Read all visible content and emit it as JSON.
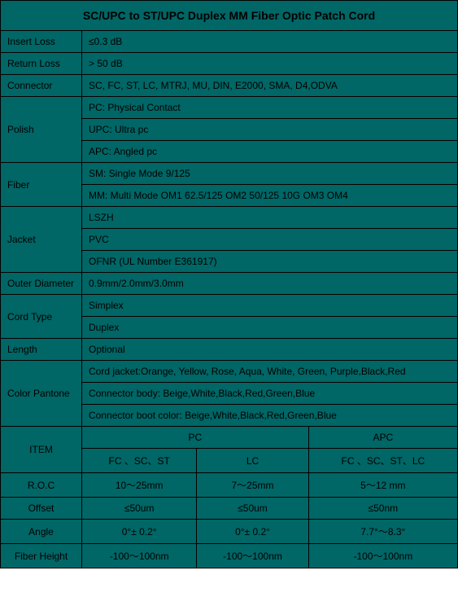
{
  "background_color": "#006666",
  "border_color": "#000000",
  "text_color": "#000000",
  "title": "SC/UPC to ST/UPC Duplex MM Fiber Optic Patch Cord",
  "specs": {
    "insert_loss": {
      "label": "Insert   Loss",
      "value": "≤0.3 dB"
    },
    "return_loss": {
      "label": "Return Loss",
      "value": "> 50 dB"
    },
    "connector": {
      "label": "Connector",
      "value": "SC, FC, ST, LC, MTRJ, MU, DIN, E2000, SMA, D4,ODVA"
    },
    "polish": {
      "label": "Polish",
      "rows": [
        "PC: Physical Contact",
        "UPC: Ultra pc",
        "APC: Angled pc"
      ]
    },
    "fiber": {
      "label": "Fiber",
      "rows": [
        "SM: Single Mode  9/125",
        "MM: Multi Mode  OM1 62.5/125  OM2 50/125  10G OM3 OM4"
      ]
    },
    "jacket": {
      "label": "Jacket",
      "rows": [
        "LSZH",
        "PVC",
        "OFNR (UL Number E361917)"
      ]
    },
    "outer_diameter": {
      "label": "Outer Diameter",
      "value": "0.9mm/2.0mm/3.0mm"
    },
    "cord_type": {
      "label": "Cord Type",
      "rows": [
        "Simplex",
        "Duplex"
      ]
    },
    "length": {
      "label": "Length",
      "value": "Optional"
    },
    "color_pantone": {
      "label": "Color Pantone",
      "rows": [
        "Cord jacket:Orange, Yellow, Rose, Aqua, White, Green, Purple,Black,Red",
        "Connector body: Beige,White,Black,Red,Green,Blue",
        "Connector boot color: Beige,White,Black,Red,Green,Blue"
      ]
    }
  },
  "bottom_table": {
    "item_label": "ITEM",
    "pc_label": "PC",
    "apc_label": "APC",
    "pc_sub1": "FC 、SC、ST",
    "pc_sub2": "LC",
    "apc_sub": "FC 、SC、ST、LC",
    "rows": [
      {
        "label": "R.O.C",
        "c1": "10～25mm",
        "c2": "7～25mm",
        "c3": "5～12 mm"
      },
      {
        "label": "Offset",
        "c1": "≤50um",
        "c2": "≤50um",
        "c3": "≤50nm"
      },
      {
        "label": "Angle",
        "c1": "0°± 0.2°",
        "c2": "0°± 0.2°",
        "c3": "7.7°～8.3°"
      },
      {
        "label": "Fiber Height",
        "c1": "-100～100nm",
        "c2": "-100～100nm",
        "c3": "-100～100nm"
      }
    ]
  }
}
